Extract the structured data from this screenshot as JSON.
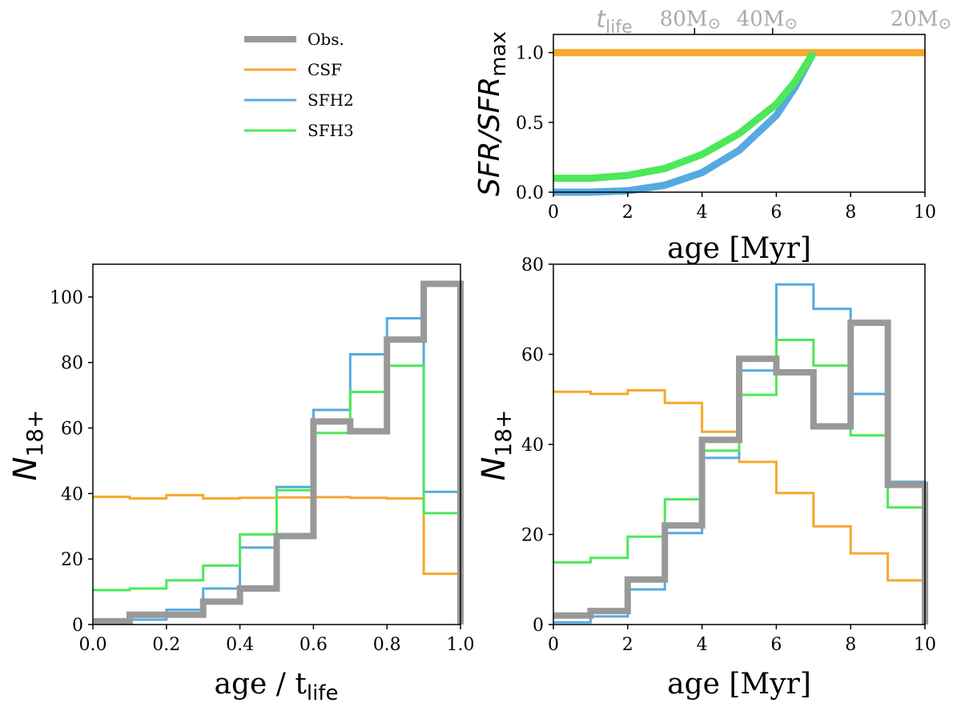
{
  "colors": {
    "obs": "#999999",
    "csf": "#f8a72c",
    "sfh2": "#56aadf",
    "sfh3": "#4de85a",
    "secondary_axis": "#aaaaaa"
  },
  "legend": [
    {
      "key": "obs",
      "label": "Obs."
    },
    {
      "key": "csf",
      "label": "CSF"
    },
    {
      "key": "sfh2",
      "label": "SFH2"
    },
    {
      "key": "sfh3",
      "label": "SFH3"
    }
  ],
  "chart_data": [
    {
      "id": "sfh",
      "type": "line",
      "xlabel": "age [Myr]",
      "ylabel": "SFR/SFR",
      "ylabel_sub": "max",
      "xlim": [
        0,
        10
      ],
      "ylim": [
        0,
        1.13
      ],
      "xticks": [
        "0",
        "2",
        "4",
        "6",
        "8",
        "10"
      ],
      "xtick_values": [
        0,
        2,
        4,
        6,
        8,
        10
      ],
      "yticks": [
        "0.0",
        "0.5",
        "1.0"
      ],
      "ytick_values": [
        0,
        0.5,
        1.0
      ],
      "secondary_x": {
        "labels": [
          {
            "text": "t",
            "sub": "life",
            "x": 1.0
          },
          {
            "text": "80M",
            "symbol": "⊙",
            "x": 3.8
          },
          {
            "text": "40M",
            "symbol": "⊙",
            "x": 5.9
          },
          {
            "text": "20M",
            "symbol": "⊙",
            "x": 10.0
          }
        ],
        "ticks": [
          3.8,
          5.9
        ]
      },
      "series": [
        {
          "key": "csf",
          "name": "CSF",
          "x": [
            0,
            10
          ],
          "y": [
            1.0,
            1.0
          ]
        },
        {
          "key": "sfh2",
          "name": "SFH2",
          "x": [
            0,
            1,
            2,
            3,
            4,
            5,
            6,
            6.5,
            7
          ],
          "y": [
            0.0,
            0.0,
            0.01,
            0.05,
            0.14,
            0.3,
            0.55,
            0.75,
            1.0
          ]
        },
        {
          "key": "sfh3",
          "name": "SFH3",
          "x": [
            0,
            1,
            2,
            3,
            4,
            5,
            6,
            6.5,
            7
          ],
          "y": [
            0.1,
            0.1,
            0.12,
            0.17,
            0.27,
            0.42,
            0.63,
            0.79,
            1.0
          ]
        }
      ]
    },
    {
      "id": "hist-tlife",
      "type": "bar",
      "xlabel": "age / t",
      "xlabel_sub": "life",
      "ylabel": "N",
      "ylabel_sub": "18+",
      "xlim": [
        0,
        1
      ],
      "ylim": [
        0,
        110
      ],
      "xticks": [
        "0.0",
        "0.2",
        "0.4",
        "0.6",
        "0.8",
        "1.0"
      ],
      "xtick_values": [
        0,
        0.2,
        0.4,
        0.6,
        0.8,
        1.0
      ],
      "yticks": [
        "0",
        "20",
        "40",
        "60",
        "80",
        "100"
      ],
      "ytick_values": [
        0,
        20,
        40,
        60,
        80,
        100
      ],
      "bin_edges": [
        0,
        0.1,
        0.2,
        0.3,
        0.4,
        0.5,
        0.6,
        0.7,
        0.8,
        0.9,
        1.0
      ],
      "series": [
        {
          "key": "csf",
          "name": "CSF",
          "values": [
            39,
            38.5,
            39.5,
            38.5,
            38.7,
            38.8,
            38.9,
            38.7,
            38.5,
            15.5
          ]
        },
        {
          "key": "sfh2",
          "name": "SFH2",
          "values": [
            0.5,
            1.5,
            4.5,
            11,
            23.5,
            42,
            65.5,
            82.5,
            93.5,
            40.5
          ]
        },
        {
          "key": "sfh3",
          "name": "SFH3",
          "values": [
            10.5,
            11,
            13.5,
            18,
            27.5,
            41,
            58.5,
            71,
            79,
            34
          ]
        },
        {
          "key": "obs",
          "name": "Obs.",
          "values": [
            1,
            3,
            3,
            7,
            11,
            27,
            62,
            59,
            87,
            104
          ]
        }
      ]
    },
    {
      "id": "hist-myr",
      "type": "bar",
      "xlabel": "age [Myr]",
      "ylabel": "N",
      "ylabel_sub": "18+",
      "xlim": [
        0,
        10
      ],
      "ylim": [
        0,
        80
      ],
      "xticks": [
        "0",
        "2",
        "4",
        "6",
        "8",
        "10"
      ],
      "xtick_values": [
        0,
        2,
        4,
        6,
        8,
        10
      ],
      "yticks": [
        "0",
        "20",
        "40",
        "60",
        "80"
      ],
      "ytick_values": [
        0,
        20,
        40,
        60,
        80
      ],
      "bin_edges": [
        0,
        1,
        2,
        3,
        4,
        5,
        6,
        7,
        8,
        9,
        10
      ],
      "series": [
        {
          "key": "csf",
          "name": "CSF",
          "values": [
            51.7,
            51.2,
            52,
            49.2,
            42.8,
            36.1,
            29.2,
            21.8,
            15.8,
            9.8
          ]
        },
        {
          "key": "sfh2",
          "name": "SFH2",
          "values": [
            0.5,
            1.8,
            7.8,
            20.3,
            37,
            56.4,
            75.5,
            70.1,
            51.2,
            31.7
          ]
        },
        {
          "key": "sfh3",
          "name": "SFH3",
          "values": [
            13.8,
            14.8,
            19.5,
            27.8,
            38.6,
            51,
            63.2,
            57.5,
            42,
            26
          ]
        },
        {
          "key": "obs",
          "name": "Obs.",
          "values": [
            2,
            3,
            10,
            22,
            41,
            59,
            56,
            44,
            67,
            31
          ]
        }
      ]
    }
  ]
}
